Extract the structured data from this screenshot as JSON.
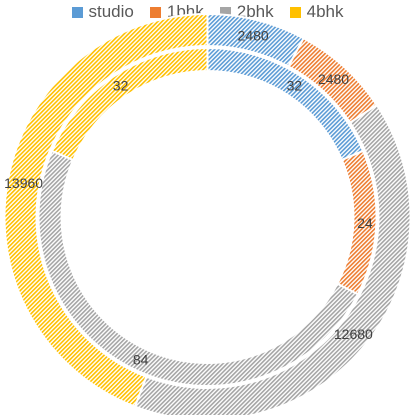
{
  "chart_data": {
    "type": "doughnut",
    "categories": [
      "studio",
      "1bhk",
      "2bhk",
      "4bhk"
    ],
    "series": [
      {
        "values": [
          32,
          24,
          84,
          32
        ]
      },
      {
        "values": [
          2480,
          2480,
          12680,
          13960
        ]
      }
    ],
    "legend_position": "top"
  },
  "colors": {
    "studio": "#5B9BD5",
    "1bhk": "#ED7D31",
    "2bhk": "#A5A5A5",
    "4bhk": "#FFC000"
  }
}
